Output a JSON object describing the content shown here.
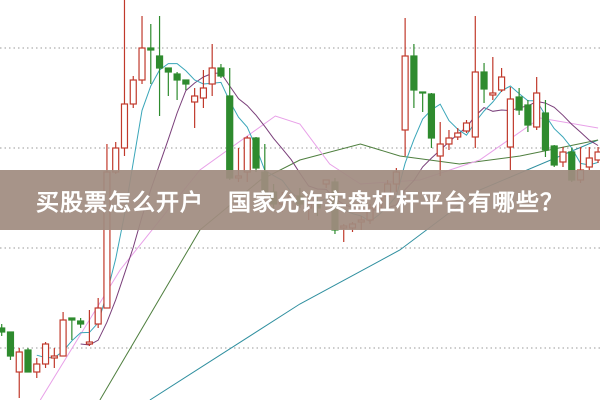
{
  "banner": {
    "title": "买股票怎么开户　国家允许实盘杠杆平台有哪些？"
  },
  "chart_data": {
    "type": "candlestick",
    "ylim": [
      0,
      100
    ],
    "grid": true,
    "colors": {
      "up": "#c0392b",
      "down": "#2e8b2e",
      "ma5": "#3aa6b9",
      "ma10": "#7a3f7a",
      "ma_pink": "#e8a0e8",
      "ma_green": "#4f7f3f",
      "ma_teal": "#2f8f9f",
      "grid": "#999999"
    },
    "candles": [
      [
        18,
        19,
        16,
        17
      ],
      [
        17,
        17,
        10,
        11
      ],
      [
        7,
        13,
        0.5,
        12
      ],
      [
        12.5,
        13,
        7,
        7
      ],
      [
        7,
        10.5,
        5.5,
        9
      ],
      [
        9,
        14.5,
        8,
        14
      ],
      [
        10.5,
        13,
        8,
        11
      ],
      [
        11,
        22,
        11,
        20
      ],
      [
        20.5,
        20.5,
        15,
        20
      ],
      [
        19.75,
        20.5,
        18,
        19
      ],
      [
        14,
        22.5,
        13.5,
        14.5
      ],
      [
        19,
        25.5,
        18,
        23
      ],
      [
        23,
        64,
        23,
        57
      ],
      [
        57,
        64.5,
        56.5,
        63
      ],
      [
        63,
        100,
        61,
        74
      ],
      [
        74,
        81,
        73,
        80
      ],
      [
        80,
        96,
        79,
        88
      ],
      [
        88,
        94,
        79,
        87.5
      ],
      [
        86,
        96,
        71,
        83
      ],
      [
        83,
        83,
        76,
        82
      ],
      [
        81.5,
        82,
        75,
        80
      ],
      [
        80,
        80,
        77.5,
        79
      ],
      [
        74.5,
        78,
        68,
        76
      ],
      [
        75.5,
        82.5,
        73,
        78
      ],
      [
        79,
        89,
        76,
        83
      ],
      [
        83,
        84,
        80.5,
        81
      ],
      [
        76,
        83,
        55,
        55.5
      ],
      [
        55.5,
        63,
        54.5,
        56
      ],
      [
        57,
        66,
        54.5,
        65.5
      ],
      [
        65.5,
        65.75,
        57,
        58
      ],
      [
        57,
        64,
        51,
        52
      ],
      [
        52,
        54,
        48,
        49
      ],
      [
        49,
        52,
        47,
        50
      ],
      [
        50,
        52,
        47.5,
        51
      ],
      [
        51,
        53,
        48,
        49
      ],
      [
        48,
        51,
        45,
        49
      ],
      [
        49,
        51,
        46,
        48
      ],
      [
        54,
        55,
        53,
        55
      ],
      [
        54.5,
        55.5,
        41.5,
        42.5
      ],
      [
        43,
        44,
        39.5,
        43.5
      ],
      [
        43,
        44.5,
        42,
        44
      ],
      [
        44.5,
        46,
        42.5,
        45
      ],
      [
        45,
        49,
        44,
        48
      ],
      [
        48,
        52,
        47,
        51
      ],
      [
        51,
        55,
        50,
        54
      ],
      [
        54,
        58,
        52,
        57
      ],
      [
        67.5,
        95.5,
        61,
        86
      ],
      [
        86,
        89,
        73,
        77.5
      ],
      [
        77,
        77,
        72,
        76.75
      ],
      [
        76.5,
        76.75,
        63,
        65.5
      ],
      [
        61,
        69.5,
        56,
        64
      ],
      [
        64,
        67.5,
        62.5,
        65.5
      ],
      [
        65.75,
        68,
        65,
        66.75
      ],
      [
        67.25,
        70,
        66.75,
        69.25
      ],
      [
        65.75,
        96,
        63,
        82
      ],
      [
        82,
        84.25,
        74.25,
        77.75
      ],
      [
        76.25,
        85.75,
        75,
        76.75
      ],
      [
        77.5,
        83,
        77,
        80.75
      ],
      [
        63.25,
        78.25,
        57.5,
        75.25
      ],
      [
        75.75,
        78,
        71.25,
        72.5
      ],
      [
        73.75,
        75,
        67,
        68.75
      ],
      [
        68.25,
        80.75,
        67.5,
        76.75
      ],
      [
        71.75,
        75,
        60.75,
        62.5
      ],
      [
        63.5,
        63.75,
        58.25,
        58.75
      ],
      [
        59.5,
        63.25,
        58.25,
        62
      ],
      [
        62,
        63,
        54.5,
        55
      ],
      [
        55,
        63.25,
        54.25,
        57.5
      ],
      [
        58.25,
        63.25,
        57.5,
        60.5
      ],
      [
        60,
        63.25,
        59.25,
        62
      ]
    ],
    "candle_fields": [
      "open",
      "high",
      "low",
      "close"
    ],
    "moving_average_lines": {
      "ma_pink": [
        [
          4.4,
          0
        ],
        [
          13.5,
          32.5
        ],
        [
          22.6,
          57.5
        ],
        [
          31.2,
          71
        ],
        [
          34,
          69
        ],
        [
          37.4,
          59
        ],
        [
          40.9,
          54
        ],
        [
          47.7,
          55
        ],
        [
          54.5,
          60
        ],
        [
          61.4,
          70.5
        ],
        [
          68,
          68
        ]
      ],
      "ma_green": [
        [
          11.2,
          0
        ],
        [
          22.6,
          42.5
        ],
        [
          29.5,
          55
        ],
        [
          34,
          60
        ],
        [
          40.9,
          64
        ],
        [
          45.4,
          61
        ],
        [
          52.2,
          59
        ],
        [
          59.1,
          61
        ],
        [
          68,
          65
        ]
      ],
      "ma_teal": [
        [
          16.9,
          0
        ],
        [
          34,
          24
        ],
        [
          45.4,
          37.5
        ],
        [
          54.5,
          52.5
        ],
        [
          68,
          65
        ]
      ]
    }
  }
}
